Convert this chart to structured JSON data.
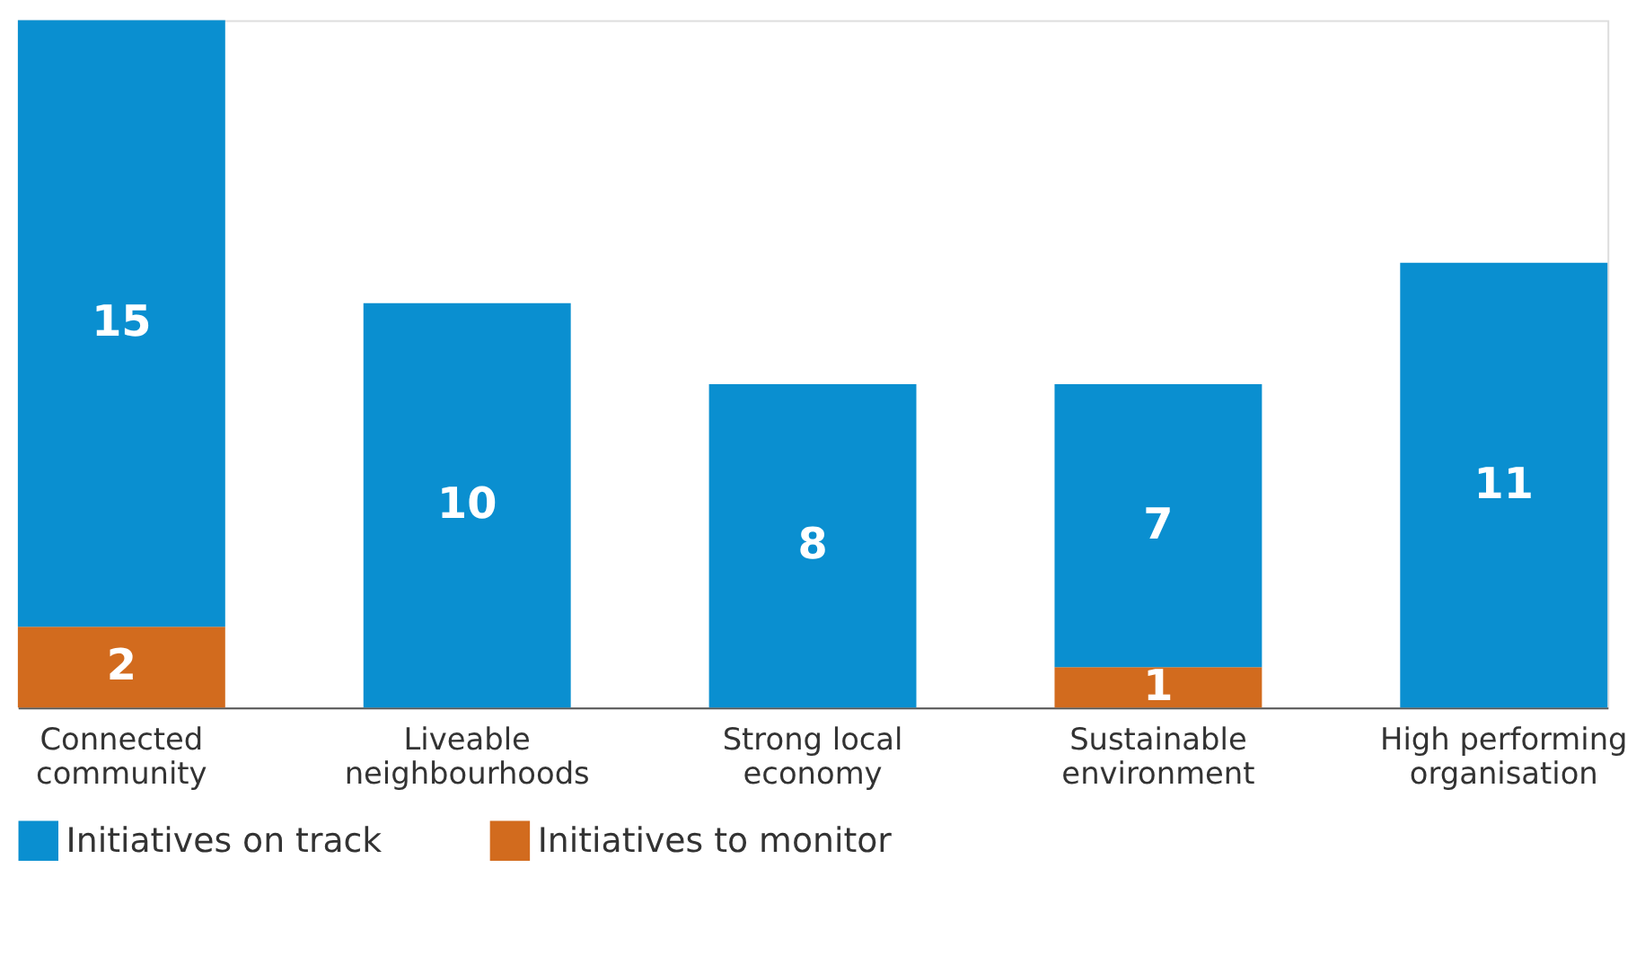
{
  "chart_data": {
    "type": "bar",
    "stacked": true,
    "categories": [
      "Connected community",
      "Liveable neighbourhoods",
      "Strong local economy",
      "Sustainable environment",
      "High performing organisation"
    ],
    "series": [
      {
        "name": "Initiatives to monitor",
        "color": "#d26b1e",
        "values": [
          2,
          null,
          null,
          1,
          null
        ]
      },
      {
        "name": "Initiatives on track",
        "color": "#0a8fd0",
        "values": [
          15,
          10,
          8,
          7,
          11
        ]
      }
    ],
    "data_labels": true,
    "legend": "bottom",
    "grid": false
  }
}
